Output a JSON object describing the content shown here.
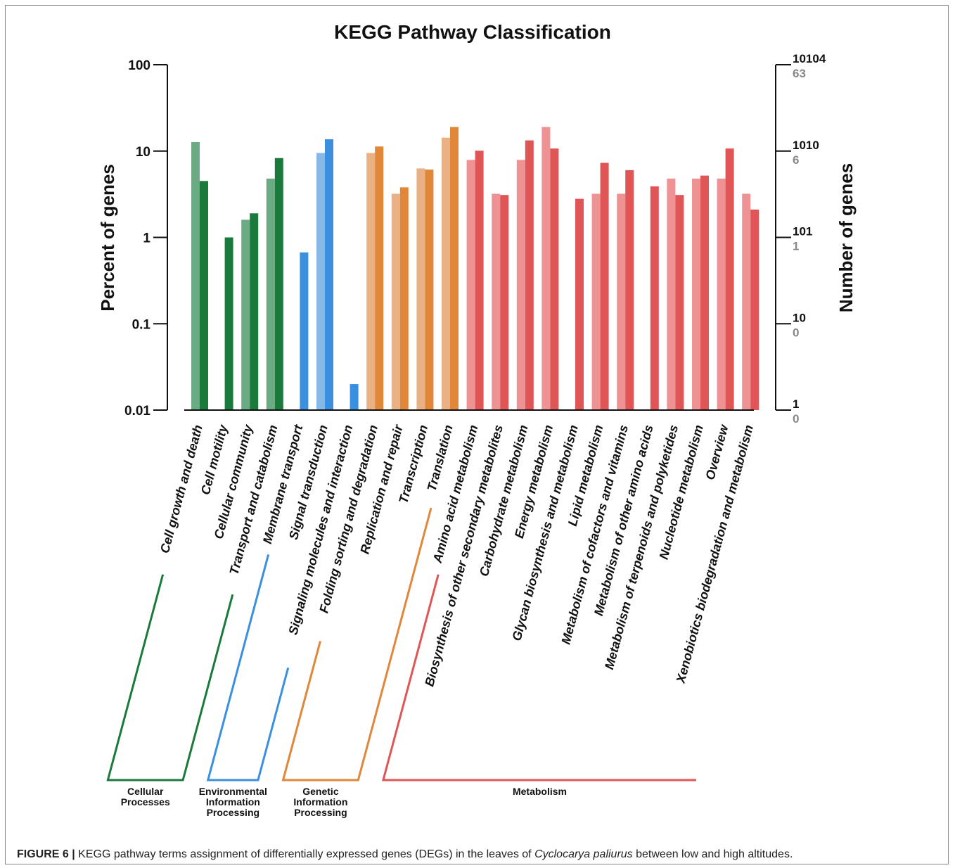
{
  "chart_data": {
    "type": "bar",
    "title": "KEGG Pathway Classification",
    "ylabel": "Percent of genes",
    "ylabel_right": "Number of genes",
    "y_scale": "log",
    "ylim": [
      0.01,
      100
    ],
    "y_ticks": [
      "100",
      "10",
      "1",
      "0.1",
      "0.01"
    ],
    "right_ticks": [
      {
        "top": "10104",
        "bottom": "63"
      },
      {
        "top": "1010",
        "bottom": "6"
      },
      {
        "top": "101",
        "bottom": "1"
      },
      {
        "top": "10",
        "bottom": "0"
      },
      {
        "top": "1",
        "bottom": "0"
      }
    ],
    "categories": [
      "Cell growth and death",
      "Cell motility",
      "Cellular community",
      "Transport and catabolism",
      "Membrane transport",
      "Signal transduction",
      "Signaling molecules and interaction",
      "Folding sorting and degradation",
      "Replication and repair",
      "Transcription",
      "Translation",
      "Amino acid metabolism",
      "Biosynthesis of other secondary metabolites",
      "Carbohydrate metabolism",
      "Energy metabolism",
      "Glycan biosynthesis and metabolism",
      "Lipid metabolism",
      "Metabolism of cofactors and vitamins",
      "Metabolism of other amino acids",
      "Metabolism of terpenoids and polyketides",
      "Nucleotide metabolism",
      "Overview",
      "Xenobiotics biodegradation and metabolism"
    ],
    "series": [
      {
        "values": [
          12.7,
          null,
          1.6,
          4.8,
          null,
          9.5,
          null,
          9.5,
          3.2,
          6.3,
          14.3,
          7.9,
          3.2,
          7.9,
          19.0,
          null,
          3.2,
          3.2,
          null,
          4.8,
          4.8,
          4.8,
          3.2
        ]
      },
      {
        "values": [
          4.5,
          1.0,
          1.9,
          8.3,
          0.67,
          13.7,
          0.02,
          11.3,
          3.8,
          6.1,
          19.0,
          10.1,
          3.1,
          13.3,
          10.7,
          2.8,
          7.3,
          6.0,
          3.9,
          3.1,
          5.2,
          10.7,
          2.1
        ]
      }
    ],
    "groups": [
      {
        "label": "Cellular Processes",
        "start": 0,
        "end": 3,
        "color": "#1a7a3c",
        "light": "#6aab84"
      },
      {
        "label": "Environmental Information Processing",
        "start": 4,
        "end": 6,
        "color": "#3a8fdf",
        "light": "#86b9e6"
      },
      {
        "label": "Genetic Information Processing",
        "start": 7,
        "end": 10,
        "color": "#e0873a",
        "light": "#eab284"
      },
      {
        "label": "Metabolism",
        "start": 11,
        "end": 22,
        "color": "#e05556",
        "light": "#ee9293"
      }
    ],
    "group_label_lines": [
      [
        "Cellular",
        "Processes"
      ],
      [
        "Environmental",
        "Information",
        "Processing"
      ],
      [
        "Genetic",
        "Information",
        "Processing"
      ],
      [
        "Metabolism"
      ]
    ]
  },
  "caption": {
    "figure_label": "FIGURE 6 |",
    "text_before": " KEGG pathway terms assignment of differentially expressed genes (DEGs) in the leaves of ",
    "italic": "Cyclocarya paliurus",
    "text_after": " between low and high altitudes."
  }
}
